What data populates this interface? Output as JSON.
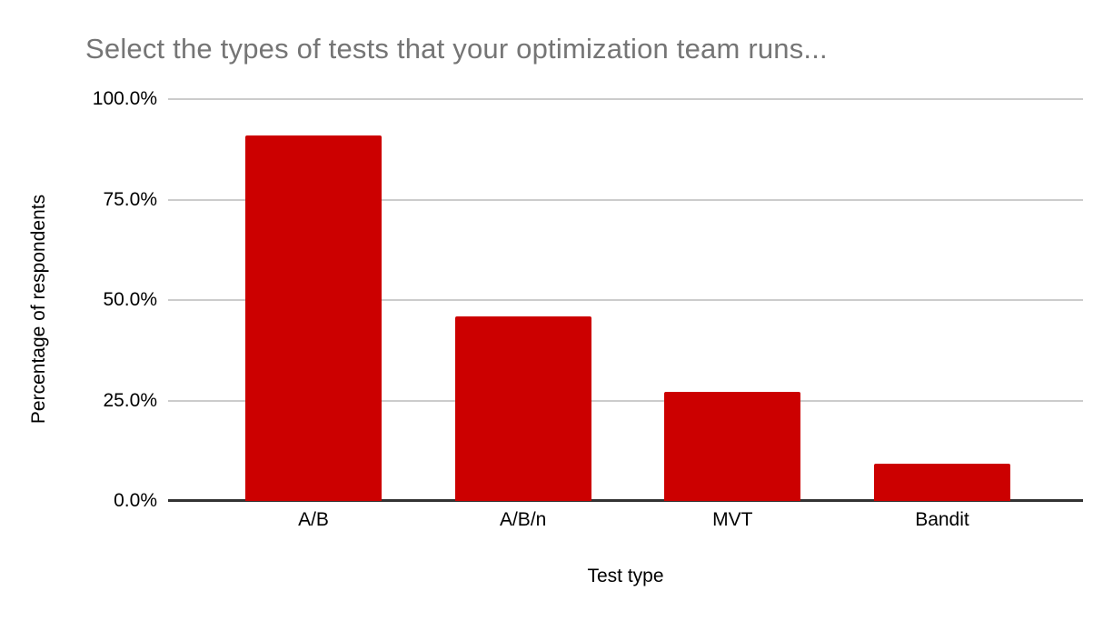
{
  "chart_data": {
    "type": "bar",
    "title": "Select the types of tests that your optimization team runs...",
    "xlabel": "Test type",
    "ylabel": "Percentage of respondents",
    "categories": [
      "A/B",
      "A/B/n",
      "MVT",
      "Bandit"
    ],
    "values": [
      90.9,
      45.9,
      27.1,
      9.3
    ],
    "value_unit": "percent of respondents",
    "ylim": [
      0,
      100
    ],
    "yticks": [
      {
        "value": 0,
        "label": "0.0%"
      },
      {
        "value": 25,
        "label": "25.0%"
      },
      {
        "value": 50,
        "label": "50.0%"
      },
      {
        "value": 75,
        "label": "75.0%"
      },
      {
        "value": 100,
        "label": "100.0%"
      }
    ],
    "grid": true,
    "legend": "none",
    "colors": {
      "bar": "#cc0000",
      "title_text": "#757575",
      "axis_text": "#000000",
      "gridline": "#cccccc",
      "axis_line": "#333333",
      "background": "#ffffff"
    }
  }
}
